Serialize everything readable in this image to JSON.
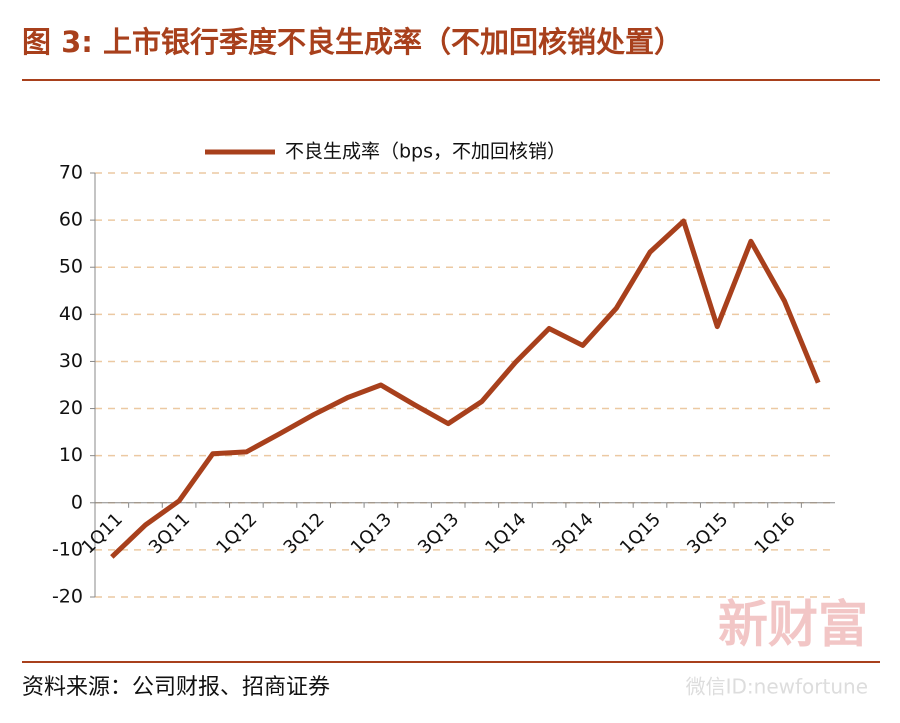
{
  "chart_data": {
    "type": "line",
    "title": "图 3:  上市银行季度不良生成率（不加回核销处置）",
    "source": "资料来源：公司财报、招商证券",
    "watermark": "新财富",
    "watermark_sub": "微信ID:newfortune",
    "categories": [
      "1Q11",
      null,
      "3Q11",
      null,
      "1Q12",
      null,
      "3Q12",
      null,
      "1Q13",
      null,
      "3Q13",
      null,
      "1Q14",
      null,
      "3Q14",
      null,
      "1Q15",
      null,
      "3Q15",
      null,
      "1Q16",
      null
    ],
    "series": [
      {
        "name": "不良生成率（bps，不加回核销）",
        "color": "#a8401c",
        "values": [
          -11.5,
          -4.7,
          0.4,
          10.4,
          10.8,
          14.7,
          18.7,
          22.3,
          25,
          20.8,
          16.8,
          21.5,
          29.8,
          37,
          33.4,
          41.3,
          53.2,
          59.8,
          37.4,
          55.5,
          42.8,
          25.5
        ]
      }
    ],
    "ylim": [
      -20,
      70
    ],
    "yticks": [
      -20,
      -10,
      0,
      10,
      20,
      30,
      40,
      50,
      60,
      70
    ],
    "grid": true,
    "legend": "top"
  }
}
